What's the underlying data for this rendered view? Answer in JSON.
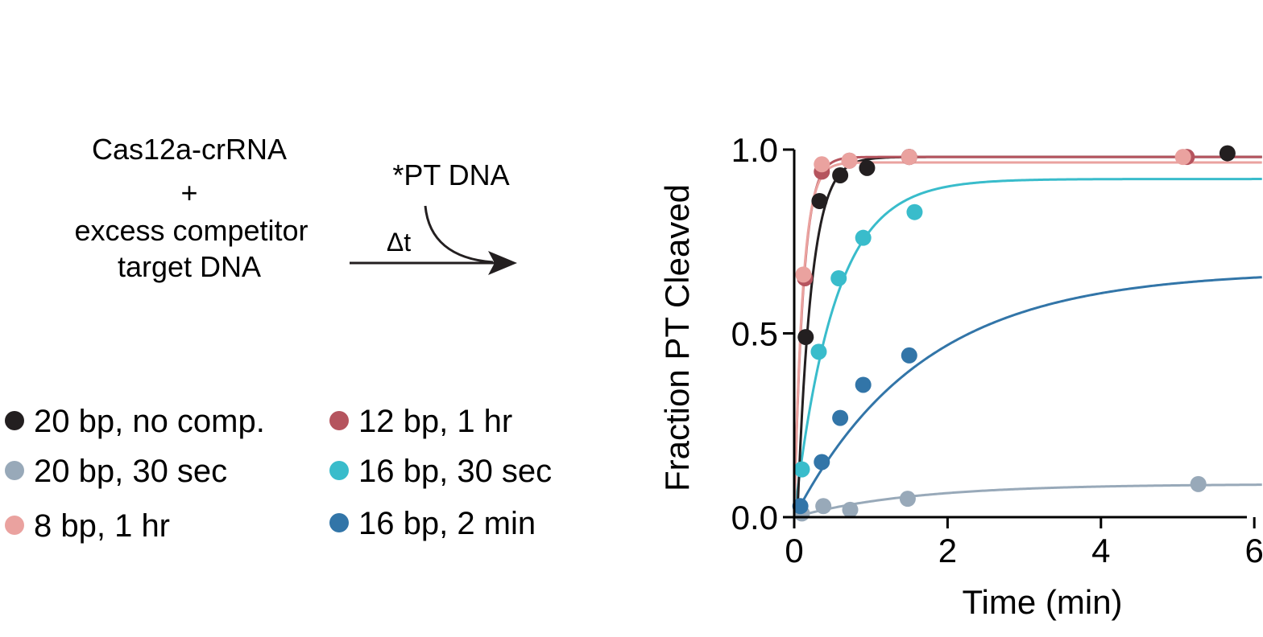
{
  "scheme": {
    "reactant_line1": "Cas12a-crRNA",
    "plus": "+",
    "reactant_line2": "excess competitor",
    "reactant_line3": "target DNA",
    "addition": "*PT DNA",
    "delta": "Δt"
  },
  "chart_data": {
    "type": "scatter",
    "xlabel": "Time (min)",
    "ylabel": "Fraction PT Cleaved",
    "xlim": [
      0,
      6.1
    ],
    "ylim": [
      0,
      1.0
    ],
    "xticks": [
      "0",
      "2",
      "4",
      "6"
    ],
    "yticks": [
      "0.0",
      "0.5",
      "1.0"
    ],
    "fit": "single exponential",
    "legend_placement": "left of plot, two columns",
    "series": [
      {
        "name": "20 bp, no comp.",
        "color": "#231f20",
        "amplitude": 0.98,
        "k": 5.5,
        "t0": 0.04,
        "x": [
          0.15,
          0.33,
          0.6,
          0.95,
          1.5,
          5.65
        ],
        "y": [
          0.49,
          0.86,
          0.93,
          0.95,
          0.98,
          0.99
        ]
      },
      {
        "name": "20 bp, 30 sec",
        "color": "#98a9b9",
        "amplitude": 0.09,
        "k": 0.65,
        "t0": 0.0,
        "x": [
          0.1,
          0.38,
          0.73,
          1.48,
          5.27
        ],
        "y": [
          0.01,
          0.03,
          0.02,
          0.05,
          0.09
        ]
      },
      {
        "name": "8 bp, 1 hr",
        "color": "#eaa29f",
        "amplitude": 0.965,
        "k": 9.0,
        "t0": 0.0,
        "x": [
          0.12,
          0.36,
          0.72,
          1.5,
          5.07
        ],
        "y": [
          0.66,
          0.96,
          0.97,
          0.98,
          0.98
        ]
      },
      {
        "name": "12 bp, 1 hr",
        "color": "#b5545e",
        "amplitude": 0.98,
        "k": 8.5,
        "t0": 0.0,
        "x": [
          0.14,
          0.36,
          0.72,
          1.5,
          5.12
        ],
        "y": [
          0.65,
          0.94,
          0.97,
          0.98,
          0.98
        ]
      },
      {
        "name": "16 bp, 30 sec",
        "color": "#39bccb",
        "amplitude": 0.92,
        "k": 1.9,
        "t0": 0.0,
        "x": [
          0.1,
          0.32,
          0.58,
          0.9,
          1.57
        ],
        "y": [
          0.13,
          0.45,
          0.65,
          0.76,
          0.83
        ]
      },
      {
        "name": "16 bp, 2 min",
        "color": "#3275a8",
        "amplitude": 0.67,
        "k": 0.6,
        "t0": 0.0,
        "x": [
          0.08,
          0.36,
          0.6,
          0.9,
          1.5
        ],
        "y": [
          0.03,
          0.15,
          0.27,
          0.36,
          0.44
        ]
      }
    ]
  }
}
